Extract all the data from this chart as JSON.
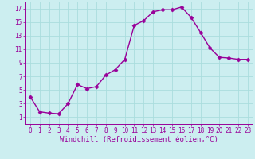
{
  "x": [
    0,
    1,
    2,
    3,
    4,
    5,
    6,
    7,
    8,
    9,
    10,
    11,
    12,
    13,
    14,
    15,
    16,
    17,
    18,
    19,
    20,
    21,
    22,
    23
  ],
  "y": [
    4.0,
    1.8,
    1.6,
    1.5,
    3.0,
    5.8,
    5.2,
    5.5,
    7.2,
    8.0,
    9.5,
    14.5,
    15.2,
    16.5,
    16.8,
    16.8,
    17.2,
    15.7,
    13.5,
    11.2,
    9.8,
    9.7,
    9.5,
    9.5
  ],
  "line_color": "#990099",
  "marker": "D",
  "markersize": 2.5,
  "linewidth": 1.0,
  "xlabel": "Windchill (Refroidissement éolien,°C)",
  "xlim": [
    -0.5,
    23.5
  ],
  "ylim": [
    0,
    18
  ],
  "xticks": [
    0,
    1,
    2,
    3,
    4,
    5,
    6,
    7,
    8,
    9,
    10,
    11,
    12,
    13,
    14,
    15,
    16,
    17,
    18,
    19,
    20,
    21,
    22,
    23
  ],
  "yticks": [
    1,
    3,
    5,
    7,
    9,
    11,
    13,
    15,
    17
  ],
  "bg_color": "#cceef0",
  "grid_color": "#aadddd",
  "tick_label_fontsize": 5.5,
  "xlabel_fontsize": 6.5
}
